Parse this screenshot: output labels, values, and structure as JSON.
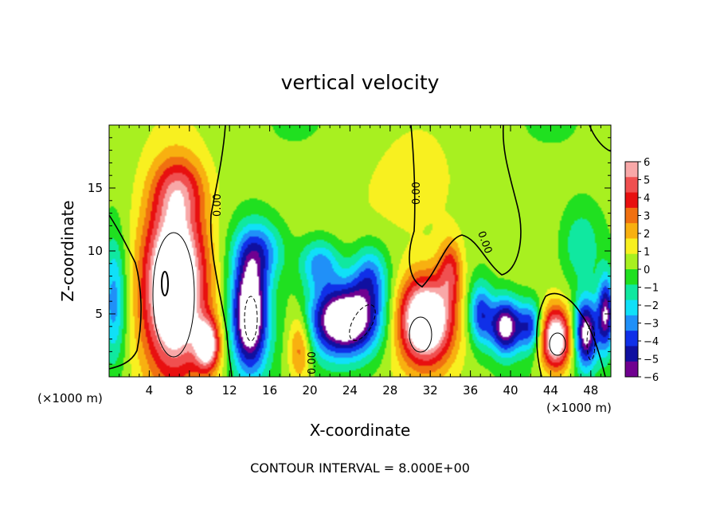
{
  "chart_data": {
    "type": "heatmap",
    "title": "vertical velocity",
    "xlabel": "X-coordinate",
    "ylabel": "Z-coordinate",
    "x_unit_left": "(×1000 m)",
    "x_unit_right": "(×1000 m)",
    "footer": "CONTOUR INTERVAL = 8.000E+00",
    "xlim": [
      0,
      50
    ],
    "ylim": [
      0,
      20
    ],
    "x_ticks": [
      "4",
      "8",
      "12",
      "16",
      "20",
      "24",
      "28",
      "32",
      "36",
      "40",
      "44",
      "48"
    ],
    "y_ticks": [
      "5",
      "10",
      "15"
    ],
    "contour_labels": [
      "0.00",
      "0.00",
      "0.00",
      "0.00"
    ],
    "colorbar": {
      "ticks": [
        "6",
        "5",
        "4",
        "3",
        "2",
        "1",
        "0",
        "−1",
        "−2",
        "−3",
        "−4",
        "−5",
        "−6"
      ],
      "colors": [
        "#f8a8a8",
        "#f05050",
        "#e81010",
        "#f07010",
        "#f8b010",
        "#f8f020",
        "#a8f020",
        "#20e020",
        "#10e8a0",
        "#10e0f8",
        "#2090f8",
        "#1030e8",
        "#1010a0",
        "#700090"
      ]
    },
    "features": [
      {
        "kind": "updraft",
        "x": 6.5,
        "z": 7.5,
        "rx": 3.2,
        "rz": 7.0,
        "amp": 11
      },
      {
        "kind": "updraft",
        "x": 9.8,
        "z": 2.5,
        "rx": 1.2,
        "rz": 2.0,
        "amp": 7
      },
      {
        "kind": "updraft",
        "x": 31.5,
        "z": 4.5,
        "rx": 2.8,
        "rz": 3.5,
        "amp": 10
      },
      {
        "kind": "updraft",
        "x": 34.0,
        "z": 8.5,
        "rx": 1.2,
        "rz": 2.5,
        "amp": 4
      },
      {
        "kind": "updraft",
        "x": 44.5,
        "z": 3.0,
        "rx": 1.6,
        "rz": 2.5,
        "amp": 9
      },
      {
        "kind": "updraft",
        "x": 19.0,
        "z": 2.5,
        "rx": 1.2,
        "rz": 3.0,
        "amp": 4
      },
      {
        "kind": "updraft",
        "x": 7.0,
        "z": 15.0,
        "rx": 2.5,
        "rz": 2.5,
        "amp": 3
      },
      {
        "kind": "downdraft",
        "x": 14.0,
        "z": 5.0,
        "rx": 1.8,
        "rz": 4.5,
        "amp": -10
      },
      {
        "kind": "downdraft",
        "x": 15.0,
        "z": 10.0,
        "rx": 2.5,
        "rz": 2.5,
        "amp": -4
      },
      {
        "kind": "downdraft",
        "x": 23.5,
        "z": 4.5,
        "rx": 3.5,
        "rz": 2.8,
        "amp": -10
      },
      {
        "kind": "downdraft",
        "x": 21.0,
        "z": 9.0,
        "rx": 2.0,
        "rz": 2.0,
        "amp": -4
      },
      {
        "kind": "downdraft",
        "x": 26.0,
        "z": 8.0,
        "rx": 1.8,
        "rz": 2.5,
        "amp": -4
      },
      {
        "kind": "downdraft",
        "x": 39.5,
        "z": 4.0,
        "rx": 1.5,
        "rz": 2.2,
        "amp": -8
      },
      {
        "kind": "downdraft",
        "x": 37.0,
        "z": 5.0,
        "rx": 1.2,
        "rz": 2.5,
        "amp": -5
      },
      {
        "kind": "downdraft",
        "x": 42.0,
        "z": 4.0,
        "rx": 1.2,
        "rz": 2.0,
        "amp": -5
      },
      {
        "kind": "downdraft",
        "x": 47.5,
        "z": 3.5,
        "rx": 1.2,
        "rz": 2.8,
        "amp": -8
      },
      {
        "kind": "downdraft",
        "x": 49.5,
        "z": 5.0,
        "rx": 0.8,
        "rz": 3.0,
        "amp": -7
      },
      {
        "kind": "downdraft",
        "x": 0.5,
        "z": 6.0,
        "rx": 1.2,
        "rz": 5.0,
        "amp": -4
      },
      {
        "kind": "downdraft",
        "x": 47.0,
        "z": 10.5,
        "rx": 2.0,
        "rz": 3.0,
        "amp": -2.5
      },
      {
        "kind": "updraft",
        "x": 30.0,
        "z": 14.0,
        "rx": 6.0,
        "rz": 5.0,
        "amp": 1.2
      }
    ]
  }
}
